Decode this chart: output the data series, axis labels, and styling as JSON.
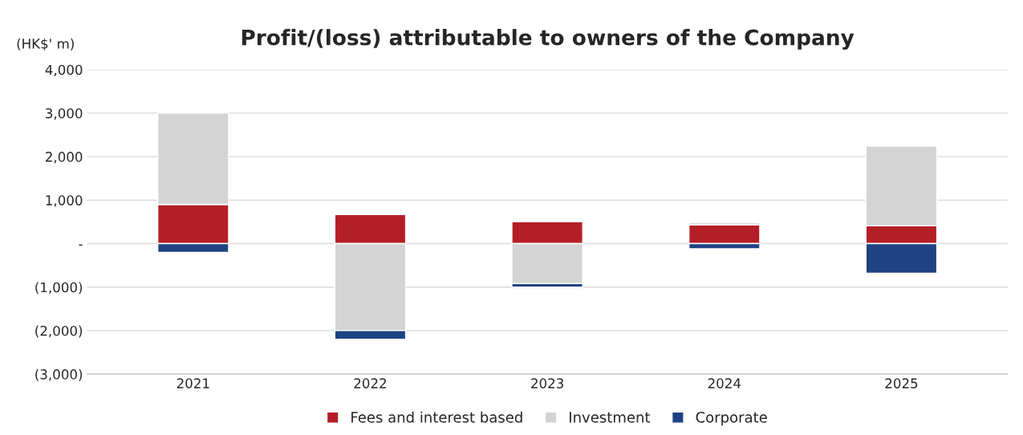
{
  "chart_data": {
    "type": "bar",
    "title": "Profit/(loss) attributable to owners of the Company",
    "ylabel": "(HK$' m)",
    "categories": [
      "2021",
      "2022",
      "2023",
      "2024",
      "2025"
    ],
    "stacked": true,
    "series": [
      {
        "name": "Fees and interest based",
        "color": "#b41f27",
        "values": [
          900,
          670,
          500,
          430,
          410
        ]
      },
      {
        "name": "Investment",
        "color": "#d3d4d3",
        "values": [
          2100,
          -2000,
          -920,
          50,
          1830
        ]
      },
      {
        "name": "Corporate",
        "color": "#1f4283",
        "values": [
          -200,
          -200,
          -80,
          -120,
          -680
        ]
      }
    ],
    "ylim": [
      -3000,
      4000
    ],
    "yticks": [
      {
        "value": -3000,
        "label": "(3,000)"
      },
      {
        "value": -2000,
        "label": "(2,000)"
      },
      {
        "value": -1000,
        "label": "(1,000)"
      },
      {
        "value": 0,
        "label": "-"
      },
      {
        "value": 1000,
        "label": "1,000"
      },
      {
        "value": 2000,
        "label": "2,000"
      },
      {
        "value": 3000,
        "label": "3,000"
      },
      {
        "value": 4000,
        "label": "4,000"
      }
    ],
    "grid": "y",
    "legend": "bottom"
  }
}
